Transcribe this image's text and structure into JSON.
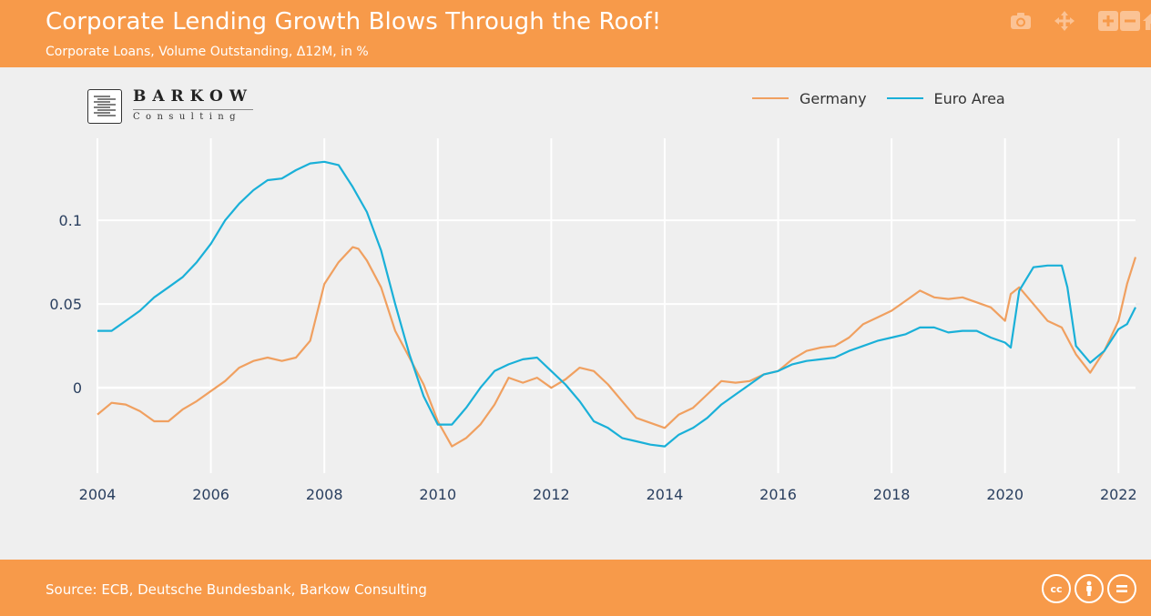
{
  "header": {
    "title": "Corporate Lending Growth Blows Through the Roof!",
    "subtitle": "Corporate Loans, Volume Outstanding, Δ12M, in %"
  },
  "modebar": {
    "items": [
      "camera-icon",
      "pan-icon",
      "zoom-in-icon",
      "zoom-out-icon",
      "home-icon"
    ]
  },
  "logo": {
    "name": "BARKOW",
    "sub": "Consulting"
  },
  "footer": {
    "source": "Source: ECB, Deutsche Bundesbank, Barkow Consulting",
    "license_icons": [
      "cc",
      "by",
      "nd"
    ]
  },
  "colors": {
    "header_bg": "#f79a4a",
    "plot_bg": "#efefef",
    "grid": "#ffffff",
    "germany": "#f0a060",
    "euro_area": "#1ab0d8"
  },
  "chart_data": {
    "type": "line",
    "title": "Corporate Lending Growth Blows Through the Roof!",
    "subtitle": "Corporate Loans, Volume Outstanding, Δ12M, in %",
    "xlim": [
      2004,
      2022.3
    ],
    "ylim": [
      -0.051,
      0.149
    ],
    "x_ticks": [
      2004,
      2006,
      2008,
      2010,
      2012,
      2014,
      2016,
      2018,
      2020,
      2022
    ],
    "x_tick_labels": [
      "2004",
      "2006",
      "2008",
      "2010",
      "2012",
      "2014",
      "2016",
      "2018",
      "2020",
      "2022"
    ],
    "y_ticks": [
      0,
      0.05,
      0.1
    ],
    "y_tick_labels": [
      "0",
      "0.05",
      "0.1"
    ],
    "grid": true,
    "legend_position": "top-right",
    "series": [
      {
        "name": "Germany",
        "color": "#f0a060",
        "x": [
          2004.0,
          2004.25,
          2004.5,
          2004.75,
          2005.0,
          2005.25,
          2005.5,
          2005.75,
          2006.0,
          2006.25,
          2006.5,
          2006.75,
          2007.0,
          2007.25,
          2007.5,
          2007.75,
          2008.0,
          2008.25,
          2008.5,
          2008.6,
          2008.75,
          2009.0,
          2009.25,
          2009.5,
          2009.75,
          2010.0,
          2010.25,
          2010.5,
          2010.75,
          2011.0,
          2011.25,
          2011.5,
          2011.75,
          2012.0,
          2012.25,
          2012.5,
          2012.75,
          2013.0,
          2013.25,
          2013.5,
          2013.75,
          2014.0,
          2014.25,
          2014.5,
          2014.75,
          2015.0,
          2015.25,
          2015.5,
          2015.75,
          2016.0,
          2016.25,
          2016.5,
          2016.75,
          2017.0,
          2017.25,
          2017.5,
          2017.75,
          2018.0,
          2018.25,
          2018.5,
          2018.75,
          2019.0,
          2019.25,
          2019.5,
          2019.75,
          2020.0,
          2020.1,
          2020.25,
          2020.5,
          2020.75,
          2021.0,
          2021.25,
          2021.5,
          2021.75,
          2022.0,
          2022.15,
          2022.3
        ],
        "y": [
          -0.016,
          -0.009,
          -0.01,
          -0.014,
          -0.02,
          -0.02,
          -0.013,
          -0.008,
          -0.002,
          0.004,
          0.012,
          0.016,
          0.018,
          0.016,
          0.018,
          0.028,
          0.062,
          0.075,
          0.084,
          0.083,
          0.076,
          0.06,
          0.034,
          0.018,
          0.002,
          -0.02,
          -0.035,
          -0.03,
          -0.022,
          -0.01,
          0.006,
          0.003,
          0.006,
          0.0,
          0.005,
          0.012,
          0.01,
          0.002,
          -0.008,
          -0.018,
          -0.021,
          -0.024,
          -0.016,
          -0.012,
          -0.004,
          0.004,
          0.003,
          0.004,
          0.008,
          0.01,
          0.017,
          0.022,
          0.024,
          0.025,
          0.03,
          0.038,
          0.042,
          0.046,
          0.052,
          0.058,
          0.054,
          0.053,
          0.054,
          0.051,
          0.048,
          0.04,
          0.056,
          0.06,
          0.05,
          0.04,
          0.036,
          0.02,
          0.009,
          0.022,
          0.04,
          0.062,
          0.078
        ]
      },
      {
        "name": "Euro Area",
        "color": "#1ab0d8",
        "x": [
          2004.0,
          2004.25,
          2004.5,
          2004.75,
          2005.0,
          2005.25,
          2005.5,
          2005.75,
          2006.0,
          2006.25,
          2006.5,
          2006.75,
          2007.0,
          2007.25,
          2007.5,
          2007.75,
          2008.0,
          2008.25,
          2008.5,
          2008.75,
          2009.0,
          2009.25,
          2009.5,
          2009.75,
          2010.0,
          2010.25,
          2010.5,
          2010.75,
          2011.0,
          2011.25,
          2011.5,
          2011.75,
          2012.0,
          2012.25,
          2012.5,
          2012.75,
          2013.0,
          2013.25,
          2013.5,
          2013.75,
          2014.0,
          2014.25,
          2014.5,
          2014.75,
          2015.0,
          2015.25,
          2015.5,
          2015.75,
          2016.0,
          2016.25,
          2016.5,
          2016.75,
          2017.0,
          2017.25,
          2017.5,
          2017.75,
          2018.0,
          2018.25,
          2018.5,
          2018.75,
          2019.0,
          2019.25,
          2019.5,
          2019.75,
          2020.0,
          2020.1,
          2020.25,
          2020.5,
          2020.75,
          2021.0,
          2021.1,
          2021.25,
          2021.5,
          2021.75,
          2022.0,
          2022.15,
          2022.3
        ],
        "y": [
          0.034,
          0.034,
          0.04,
          0.046,
          0.054,
          0.06,
          0.066,
          0.075,
          0.086,
          0.1,
          0.11,
          0.118,
          0.124,
          0.125,
          0.13,
          0.134,
          0.135,
          0.133,
          0.12,
          0.105,
          0.082,
          0.05,
          0.02,
          -0.005,
          -0.022,
          -0.022,
          -0.012,
          0.0,
          0.01,
          0.014,
          0.017,
          0.018,
          0.01,
          0.002,
          -0.008,
          -0.02,
          -0.024,
          -0.03,
          -0.032,
          -0.034,
          -0.035,
          -0.028,
          -0.024,
          -0.018,
          -0.01,
          -0.004,
          0.002,
          0.008,
          0.01,
          0.014,
          0.016,
          0.017,
          0.018,
          0.022,
          0.025,
          0.028,
          0.03,
          0.032,
          0.036,
          0.036,
          0.033,
          0.034,
          0.034,
          0.03,
          0.027,
          0.024,
          0.058,
          0.072,
          0.073,
          0.073,
          0.06,
          0.025,
          0.015,
          0.022,
          0.035,
          0.038,
          0.048
        ]
      }
    ]
  }
}
